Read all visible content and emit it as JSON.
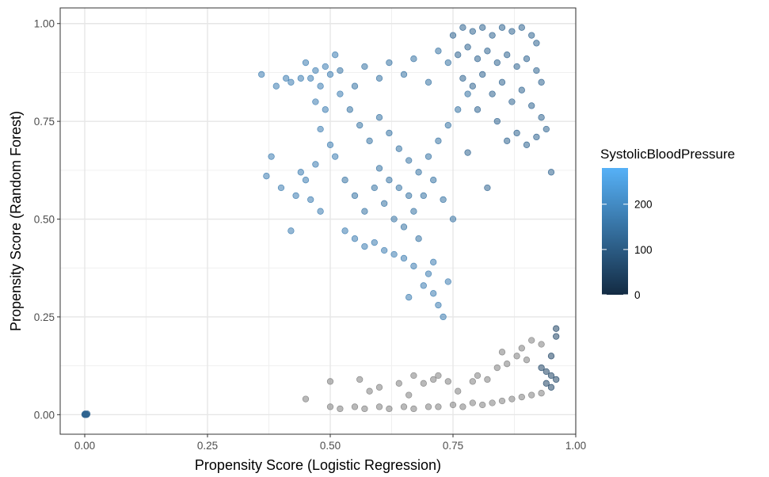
{
  "chart_data": {
    "type": "scatter",
    "xlabel": "Propensity Score (Logistic Regression)",
    "ylabel": "Propensity Score (Random Forest)",
    "xlim": [
      -0.05,
      1.0
    ],
    "ylim": [
      -0.05,
      1.04
    ],
    "x_ticks": [
      "0.00",
      "0.25",
      "0.50",
      "0.75",
      "1.00"
    ],
    "y_ticks": [
      "0.00",
      "0.25",
      "0.50",
      "0.75",
      "1.00"
    ],
    "grid": true,
    "legend": {
      "title": "SystolicBloodPressure",
      "type": "colorbar",
      "placement": "right",
      "ticks": [
        "0",
        "100",
        "200"
      ],
      "range": [
        0,
        280
      ],
      "color_low": "#132B43",
      "color_high": "#56B1F7"
    },
    "na_color": "#7f7f7f",
    "point_alpha": 0.55,
    "clusters": [
      {
        "name": "",
        "colored": true,
        "sbp": 120,
        "points": [
          [
            0.0,
            0.0
          ],
          [
            0.002,
            0.001
          ],
          [
            0.004,
            0.0
          ],
          [
            0.001,
            0.002
          ],
          [
            0.003,
            0.001
          ],
          [
            0.0,
            0.001
          ],
          [
            0.005,
            0.002
          ],
          [
            0.002,
            0.0
          ]
        ]
      },
      {
        "name": "",
        "colored": true,
        "sbp": 170,
        "points": [
          [
            0.36,
            0.87
          ],
          [
            0.39,
            0.84
          ],
          [
            0.41,
            0.86
          ],
          [
            0.42,
            0.85
          ],
          [
            0.44,
            0.86
          ],
          [
            0.45,
            0.9
          ],
          [
            0.46,
            0.86
          ],
          [
            0.47,
            0.88
          ],
          [
            0.48,
            0.84
          ],
          [
            0.49,
            0.89
          ],
          [
            0.5,
            0.87
          ],
          [
            0.51,
            0.92
          ],
          [
            0.38,
            0.66
          ],
          [
            0.37,
            0.61
          ],
          [
            0.4,
            0.58
          ],
          [
            0.43,
            0.56
          ],
          [
            0.42,
            0.47
          ],
          [
            0.45,
            0.6
          ],
          [
            0.47,
            0.64
          ],
          [
            0.48,
            0.52
          ],
          [
            0.46,
            0.55
          ],
          [
            0.44,
            0.62
          ],
          [
            0.5,
            0.69
          ],
          [
            0.51,
            0.66
          ],
          [
            0.49,
            0.78
          ],
          [
            0.48,
            0.73
          ],
          [
            0.52,
            0.82
          ],
          [
            0.47,
            0.8
          ],
          [
            0.53,
            0.47
          ],
          [
            0.55,
            0.45
          ],
          [
            0.57,
            0.43
          ],
          [
            0.59,
            0.44
          ],
          [
            0.61,
            0.42
          ],
          [
            0.63,
            0.41
          ],
          [
            0.65,
            0.4
          ],
          [
            0.67,
            0.38
          ],
          [
            0.66,
            0.3
          ],
          [
            0.69,
            0.33
          ],
          [
            0.71,
            0.31
          ],
          [
            0.72,
            0.28
          ],
          [
            0.73,
            0.25
          ],
          [
            0.74,
            0.34
          ],
          [
            0.7,
            0.36
          ],
          [
            0.71,
            0.39
          ]
        ]
      },
      {
        "name": "",
        "colored": true,
        "sbp": 150,
        "points": [
          [
            0.52,
            0.88
          ],
          [
            0.55,
            0.84
          ],
          [
            0.57,
            0.89
          ],
          [
            0.6,
            0.86
          ],
          [
            0.62,
            0.9
          ],
          [
            0.65,
            0.87
          ],
          [
            0.67,
            0.91
          ],
          [
            0.7,
            0.85
          ],
          [
            0.72,
            0.93
          ],
          [
            0.74,
            0.9
          ],
          [
            0.54,
            0.78
          ],
          [
            0.56,
            0.74
          ],
          [
            0.58,
            0.7
          ],
          [
            0.6,
            0.76
          ],
          [
            0.62,
            0.72
          ],
          [
            0.64,
            0.68
          ],
          [
            0.66,
            0.65
          ],
          [
            0.68,
            0.62
          ],
          [
            0.7,
            0.66
          ],
          [
            0.72,
            0.7
          ],
          [
            0.74,
            0.74
          ],
          [
            0.76,
            0.78
          ],
          [
            0.78,
            0.82
          ],
          [
            0.53,
            0.6
          ],
          [
            0.55,
            0.56
          ],
          [
            0.57,
            0.52
          ],
          [
            0.59,
            0.58
          ],
          [
            0.61,
            0.54
          ],
          [
            0.63,
            0.5
          ],
          [
            0.65,
            0.48
          ],
          [
            0.67,
            0.52
          ],
          [
            0.69,
            0.56
          ],
          [
            0.71,
            0.6
          ],
          [
            0.73,
            0.55
          ],
          [
            0.75,
            0.5
          ],
          [
            0.6,
            0.63
          ],
          [
            0.62,
            0.6
          ],
          [
            0.64,
            0.58
          ],
          [
            0.66,
            0.56
          ],
          [
            0.68,
            0.45
          ]
        ]
      },
      {
        "name": "",
        "colored": true,
        "sbp": 120,
        "points": [
          [
            0.75,
            0.97
          ],
          [
            0.77,
            0.99
          ],
          [
            0.79,
            0.98
          ],
          [
            0.81,
            0.99
          ],
          [
            0.83,
            0.97
          ],
          [
            0.85,
            0.99
          ],
          [
            0.87,
            0.98
          ],
          [
            0.89,
            0.99
          ],
          [
            0.91,
            0.97
          ],
          [
            0.92,
            0.95
          ],
          [
            0.76,
            0.92
          ],
          [
            0.78,
            0.94
          ],
          [
            0.8,
            0.91
          ],
          [
            0.82,
            0.93
          ],
          [
            0.84,
            0.9
          ],
          [
            0.86,
            0.92
          ],
          [
            0.88,
            0.89
          ],
          [
            0.9,
            0.91
          ],
          [
            0.92,
            0.88
          ],
          [
            0.93,
            0.85
          ],
          [
            0.77,
            0.86
          ],
          [
            0.79,
            0.84
          ],
          [
            0.81,
            0.87
          ],
          [
            0.83,
            0.82
          ],
          [
            0.85,
            0.85
          ],
          [
            0.87,
            0.8
          ],
          [
            0.89,
            0.83
          ],
          [
            0.91,
            0.79
          ],
          [
            0.93,
            0.76
          ],
          [
            0.94,
            0.73
          ],
          [
            0.8,
            0.78
          ],
          [
            0.84,
            0.75
          ],
          [
            0.88,
            0.72
          ],
          [
            0.9,
            0.69
          ],
          [
            0.86,
            0.7
          ],
          [
            0.95,
            0.62
          ],
          [
            0.92,
            0.71
          ],
          [
            0.78,
            0.67
          ],
          [
            0.82,
            0.58
          ]
        ]
      },
      {
        "name": "",
        "colored": true,
        "sbp": 55,
        "points": [
          [
            0.93,
            0.12
          ],
          [
            0.95,
            0.1
          ],
          [
            0.96,
            0.09
          ],
          [
            0.94,
            0.08
          ],
          [
            0.95,
            0.15
          ],
          [
            0.96,
            0.2
          ],
          [
            0.96,
            0.22
          ],
          [
            0.94,
            0.11
          ],
          [
            0.95,
            0.07
          ]
        ]
      },
      {
        "name": "",
        "colored": false,
        "points": [
          [
            0.45,
            0.04
          ],
          [
            0.5,
            0.085
          ],
          [
            0.5,
            0.02
          ],
          [
            0.52,
            0.015
          ],
          [
            0.55,
            0.02
          ],
          [
            0.57,
            0.015
          ],
          [
            0.6,
            0.02
          ],
          [
            0.62,
            0.015
          ],
          [
            0.65,
            0.02
          ],
          [
            0.67,
            0.015
          ],
          [
            0.7,
            0.02
          ],
          [
            0.72,
            0.02
          ],
          [
            0.75,
            0.025
          ],
          [
            0.77,
            0.02
          ],
          [
            0.79,
            0.03
          ],
          [
            0.81,
            0.025
          ],
          [
            0.83,
            0.03
          ],
          [
            0.85,
            0.035
          ],
          [
            0.87,
            0.04
          ],
          [
            0.89,
            0.045
          ],
          [
            0.91,
            0.05
          ],
          [
            0.93,
            0.055
          ],
          [
            0.56,
            0.09
          ],
          [
            0.58,
            0.06
          ],
          [
            0.6,
            0.07
          ],
          [
            0.64,
            0.08
          ],
          [
            0.66,
            0.05
          ],
          [
            0.67,
            0.1
          ],
          [
            0.69,
            0.08
          ],
          [
            0.71,
            0.09
          ],
          [
            0.72,
            0.1
          ],
          [
            0.74,
            0.085
          ],
          [
            0.76,
            0.06
          ],
          [
            0.79,
            0.085
          ],
          [
            0.8,
            0.1
          ],
          [
            0.82,
            0.09
          ],
          [
            0.84,
            0.12
          ],
          [
            0.85,
            0.16
          ],
          [
            0.86,
            0.13
          ],
          [
            0.88,
            0.15
          ],
          [
            0.89,
            0.17
          ],
          [
            0.9,
            0.14
          ],
          [
            0.91,
            0.19
          ],
          [
            0.93,
            0.18
          ]
        ]
      }
    ]
  }
}
